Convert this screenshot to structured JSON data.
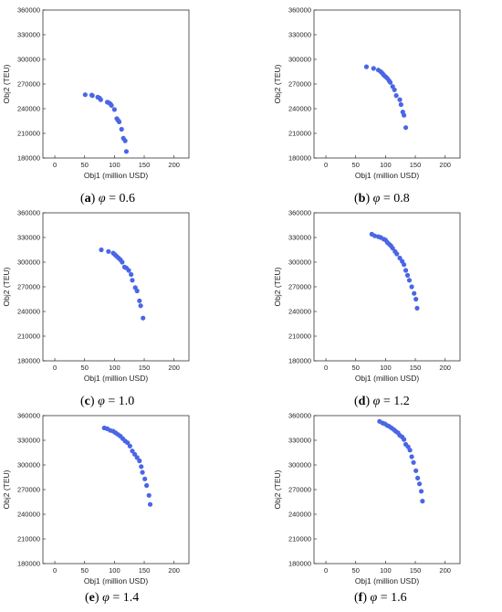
{
  "point_color": "#4a66e6",
  "chart_data": [
    {
      "type": "scatter",
      "caption": {
        "letter": "a",
        "symbol": "φ",
        "value_text": "= 0.6"
      },
      "xlabel": "Obj1 (million USD)",
      "ylabel": "Obj2 (TEU)",
      "xlim": [
        -20,
        225
      ],
      "ylim": [
        180000,
        360000
      ],
      "xticks": [
        0,
        50,
        100,
        150,
        200
      ],
      "yticks": [
        180000,
        210000,
        240000,
        270000,
        300000,
        330000,
        360000
      ],
      "grid": false,
      "x": [
        51,
        62,
        63,
        72,
        75,
        77,
        88,
        90,
        93,
        95,
        100,
        104,
        106,
        108,
        112,
        115,
        118,
        120
      ],
      "y": [
        257000,
        256500,
        256000,
        254000,
        253000,
        251000,
        248000,
        247500,
        246000,
        244000,
        239000,
        228000,
        226000,
        224000,
        215000,
        204000,
        201000,
        188000
      ]
    },
    {
      "type": "scatter",
      "caption": {
        "letter": "b",
        "symbol": "φ",
        "value_text": "= 0.8"
      },
      "xlabel": "Obj1 (million USD)",
      "ylabel": "Obj2 (TEU)",
      "xlim": [
        -20,
        225
      ],
      "ylim": [
        180000,
        360000
      ],
      "xticks": [
        0,
        50,
        100,
        150,
        200
      ],
      "yticks": [
        180000,
        210000,
        240000,
        270000,
        300000,
        330000,
        360000
      ],
      "grid": false,
      "x": [
        68,
        80,
        88,
        92,
        95,
        97,
        100,
        103,
        106,
        108,
        112,
        115,
        118,
        124,
        126,
        129,
        131,
        134
      ],
      "y": [
        291000,
        289000,
        287000,
        285000,
        283000,
        281000,
        279000,
        277000,
        274000,
        272000,
        267000,
        263000,
        256000,
        251000,
        245000,
        236000,
        232000,
        217000
      ]
    },
    {
      "type": "scatter",
      "caption": {
        "letter": "c",
        "symbol": "φ",
        "value_text": "= 1.0"
      },
      "xlabel": "Obj1 (million USD)",
      "ylabel": "Obj2 (TEU)",
      "xlim": [
        -20,
        225
      ],
      "ylim": [
        180000,
        360000
      ],
      "xticks": [
        0,
        50,
        100,
        150,
        200
      ],
      "yticks": [
        180000,
        210000,
        240000,
        270000,
        300000,
        330000,
        360000
      ],
      "grid": false,
      "x": [
        78,
        90,
        98,
        101,
        104,
        107,
        110,
        113,
        117,
        120,
        124,
        128,
        130,
        135,
        138,
        142,
        144,
        148
      ],
      "y": [
        315000,
        313000,
        311000,
        309000,
        307000,
        305000,
        303000,
        300000,
        294000,
        293000,
        290000,
        285000,
        278000,
        269000,
        265000,
        253000,
        247000,
        232000
      ]
    },
    {
      "type": "scatter",
      "caption": {
        "letter": "d",
        "symbol": "φ",
        "value_text": "= 1.2"
      },
      "xlabel": "Obj1 (million USD)",
      "ylabel": "Obj2 (TEU)",
      "xlim": [
        -20,
        225
      ],
      "ylim": [
        180000,
        360000
      ],
      "xticks": [
        0,
        50,
        100,
        150,
        200
      ],
      "yticks": [
        180000,
        210000,
        240000,
        270000,
        300000,
        330000,
        360000
      ],
      "grid": false,
      "x": [
        77,
        82,
        88,
        92,
        97,
        100,
        103,
        106,
        109,
        112,
        116,
        119,
        124,
        128,
        131,
        134,
        137,
        140,
        144,
        148,
        151,
        153
      ],
      "y": [
        334000,
        332000,
        331000,
        330000,
        328000,
        327000,
        324000,
        322000,
        320000,
        317000,
        313000,
        310000,
        305000,
        301000,
        297000,
        290000,
        284000,
        278000,
        270000,
        262000,
        255000,
        244000
      ]
    },
    {
      "type": "scatter",
      "caption": {
        "letter": "e",
        "symbol": "φ",
        "value_text": "= 1.4"
      },
      "xlabel": "Obj1 (million USD)",
      "ylabel": "Obj2 (TEU)",
      "xlim": [
        -20,
        225
      ],
      "ylim": [
        180000,
        360000
      ],
      "xticks": [
        0,
        50,
        100,
        150,
        200
      ],
      "yticks": [
        180000,
        210000,
        240000,
        270000,
        300000,
        330000,
        360000
      ],
      "grid": false,
      "x": [
        83,
        88,
        93,
        98,
        102,
        106,
        110,
        114,
        118,
        122,
        126,
        130,
        134,
        138,
        142,
        145,
        147,
        151,
        154,
        158,
        160
      ],
      "y": [
        345000,
        344000,
        342000,
        341000,
        339000,
        337000,
        335000,
        332000,
        329000,
        327000,
        323000,
        317000,
        313000,
        309000,
        305000,
        298000,
        291000,
        283000,
        275000,
        263000,
        252000
      ]
    },
    {
      "type": "scatter",
      "caption": {
        "letter": "f",
        "symbol": "φ",
        "value_text": "= 1.6"
      },
      "xlabel": "Obj1 (million USD)",
      "ylabel": "Obj2 (TEU)",
      "xlim": [
        -20,
        225
      ],
      "ylim": [
        180000,
        360000
      ],
      "xticks": [
        0,
        50,
        100,
        150,
        200
      ],
      "yticks": [
        180000,
        210000,
        240000,
        270000,
        300000,
        330000,
        360000
      ],
      "grid": false,
      "x": [
        90,
        95,
        99,
        103,
        106,
        110,
        114,
        117,
        121,
        124,
        128,
        131,
        134,
        138,
        141,
        144,
        147,
        151,
        154,
        157,
        160,
        162
      ],
      "y": [
        353000,
        351000,
        350000,
        348000,
        347000,
        345000,
        343000,
        341000,
        339000,
        336000,
        334000,
        331000,
        325000,
        322000,
        318000,
        310000,
        303000,
        293000,
        284000,
        277000,
        268000,
        256000
      ]
    }
  ]
}
